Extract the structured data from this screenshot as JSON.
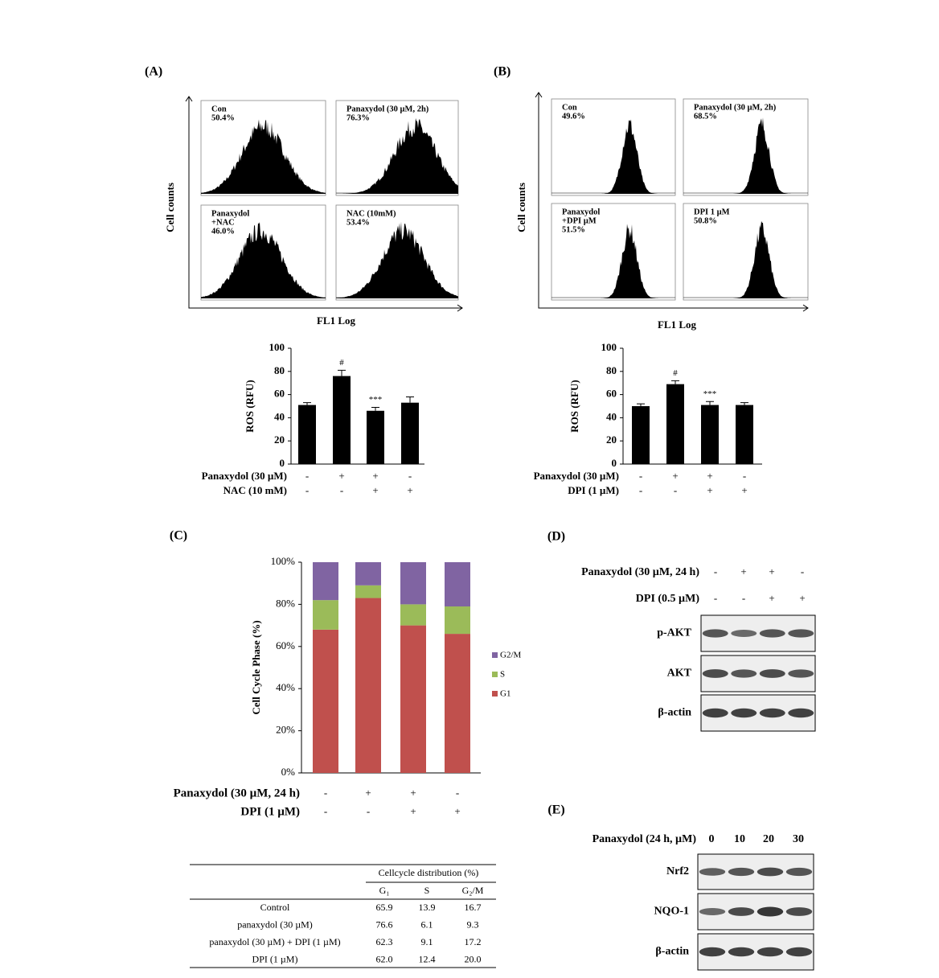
{
  "chart_data": [
    {
      "type": "bar",
      "ylabel": "ROS (RFU)",
      "values": [
        51,
        76,
        46,
        53
      ],
      "errors": [
        2,
        5,
        3,
        5
      ],
      "color": "#000000",
      "ylim": [
        0,
        100
      ],
      "yticks": [
        0,
        20,
        40,
        60,
        80,
        100
      ],
      "annotations": [
        {
          "index": 1,
          "text": "#"
        },
        {
          "index": 2,
          "text": "***"
        }
      ],
      "treatments": [
        {
          "name": "Panaxydol (30 µM)",
          "signs": [
            "-",
            "+",
            "+",
            "-"
          ]
        },
        {
          "name": "NAC (10 mM)",
          "signs": [
            "-",
            "-",
            "+",
            "+"
          ]
        }
      ]
    },
    {
      "type": "bar",
      "ylabel": "ROS (RFU)",
      "values": [
        50,
        69,
        51,
        51
      ],
      "errors": [
        2,
        3,
        3,
        2
      ],
      "color": "#000000",
      "ylim": [
        0,
        100
      ],
      "yticks": [
        0,
        20,
        40,
        60,
        80,
        100
      ],
      "annotations": [
        {
          "index": 1,
          "text": "#"
        },
        {
          "index": 2,
          "text": "***"
        }
      ],
      "treatments": [
        {
          "name": "Panaxydol (30 µM)",
          "signs": [
            "-",
            "+",
            "+",
            "-"
          ]
        },
        {
          "name": "DPI (1 µM)",
          "signs": [
            "-",
            "-",
            "+",
            "+"
          ]
        }
      ]
    },
    {
      "type": "stacked_bar",
      "panel_label": "(C)",
      "ylabel": "Cell Cycle Phase (%)",
      "series": [
        {
          "name": "G1",
          "color": "#c0504d",
          "values": [
            68,
            83,
            70,
            66
          ]
        },
        {
          "name": "S",
          "color": "#9bbb59",
          "values": [
            14,
            6,
            10,
            13
          ]
        },
        {
          "name": "G2/M",
          "color": "#8064a2",
          "values": [
            18,
            11,
            20,
            21
          ]
        }
      ],
      "ylim": [
        0,
        100
      ],
      "yticks": [
        {
          "value": 0,
          "label": "0%"
        },
        {
          "value": 20,
          "label": "20%"
        },
        {
          "value": 40,
          "label": "40%"
        },
        {
          "value": 60,
          "label": "60%"
        },
        {
          "value": 80,
          "label": "80%"
        },
        {
          "value": 100,
          "label": "100%"
        }
      ],
      "treatments": [
        {
          "name": "Panaxydol (30 µM, 24 h)",
          "signs": [
            "-",
            "+",
            "+",
            "-"
          ]
        },
        {
          "name": "DPI (1 µM)",
          "signs": [
            "-",
            "-",
            "+",
            "+"
          ]
        }
      ]
    }
  ],
  "flow_panels": [
    {
      "label": "(A)",
      "y_label": "Cell counts",
      "x_label": "FL1 Log",
      "plots": [
        {
          "lines": [
            "Con",
            "50.4%"
          ]
        },
        {
          "lines": [
            "Panaxydol (30 µM, 2h)",
            "76.3%"
          ]
        },
        {
          "lines": [
            "Panaxydol",
            "+NAC",
            "46.0%"
          ]
        },
        {
          "lines": [
            "NAC (10mM)",
            "53.4%"
          ]
        }
      ]
    },
    {
      "label": "(B)",
      "y_label": "Cell counts",
      "x_label": "FL1 Log",
      "plots": [
        {
          "lines": [
            "Con",
            "49.6%"
          ]
        },
        {
          "lines": [
            "Panaxydol (30 µM, 2h)",
            "68.5%"
          ]
        },
        {
          "lines": [
            "Panaxydol",
            "+DPI µM",
            "51.5%"
          ]
        },
        {
          "lines": [
            "DPI 1 µM",
            "50.8%"
          ]
        }
      ]
    }
  ],
  "table": {
    "title": "Cellcycle distribution (%)",
    "columns": [
      "G₁",
      "S",
      "G₂/M"
    ],
    "rows": [
      [
        "Control",
        "65.9",
        "13.9",
        "16.7"
      ],
      [
        "panaxydol (30 µM)",
        "76.6",
        "6.1",
        "9.3"
      ],
      [
        "panaxydol (30 µM) + DPI (1 µM)",
        "62.3",
        "9.1",
        "17.2"
      ],
      [
        "DPI (1 µM)",
        "62.0",
        "12.4",
        "20.0"
      ]
    ]
  },
  "blots": [
    {
      "label": "(D)",
      "treatments": [
        {
          "name": "Panaxydol (30 µM, 24 h)",
          "signs": [
            "-",
            "+",
            "+",
            "-"
          ]
        },
        {
          "name": "DPI (0.5 µM)",
          "signs": [
            "-",
            "-",
            "+",
            "+"
          ]
        }
      ],
      "bands": [
        "p-AKT",
        "AKT",
        "β-actin"
      ]
    },
    {
      "label": "(E)",
      "header": "Panaxydol (24 h, µM)",
      "doses": [
        "0",
        "10",
        "20",
        "30"
      ],
      "bands": [
        "Nrf2",
        "NQO-1",
        "β-actin"
      ]
    }
  ]
}
